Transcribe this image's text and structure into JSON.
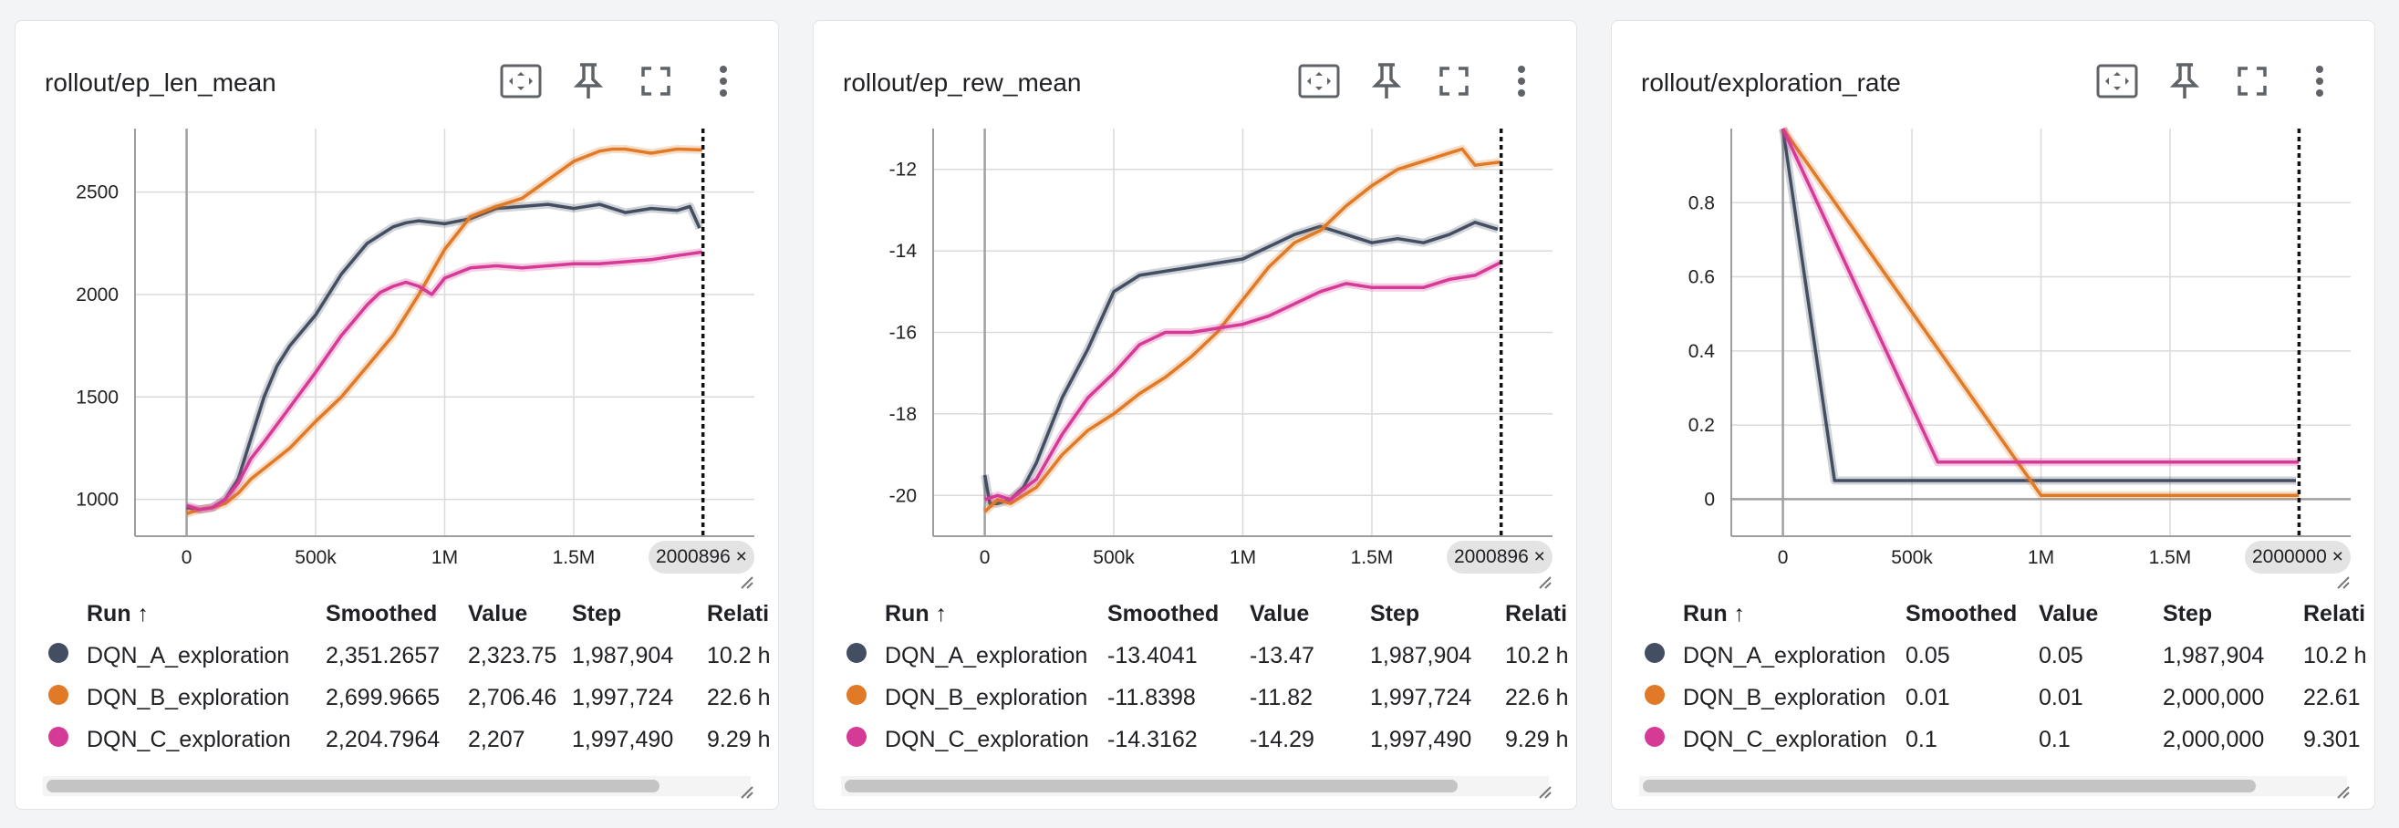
{
  "icons": [
    "fit-domain-icon",
    "pin-icon",
    "fullscreen-icon",
    "more-vert-icon"
  ],
  "columns": [
    "Run ↑",
    "Smoothed",
    "Value",
    "Step",
    "Relati"
  ],
  "runs": [
    {
      "name": "DQN_A_exploration",
      "color": "#444e63"
    },
    {
      "name": "DQN_B_exploration",
      "color": "#e07a26"
    },
    {
      "name": "DQN_C_exploration",
      "color": "#d63a97"
    }
  ],
  "cards": [
    {
      "title": "rollout/ep_len_mean",
      "step_label": "2000896 ×",
      "rows": [
        [
          "2,351.2657",
          "2,323.75",
          "1,987,904",
          "10.2 h"
        ],
        [
          "2,699.9665",
          "2,706.46",
          "1,997,724",
          "22.6 h"
        ],
        [
          "2,204.7964",
          "2,207",
          "1,997,490",
          "9.29 h"
        ]
      ]
    },
    {
      "title": "rollout/ep_rew_mean",
      "step_label": "2000896 ×",
      "rows": [
        [
          "-13.4041",
          "-13.47",
          "1,987,904",
          "10.2 h"
        ],
        [
          "-11.8398",
          "-11.82",
          "1,997,724",
          "22.6 h"
        ],
        [
          "-14.3162",
          "-14.29",
          "1,997,490",
          "9.29 h"
        ]
      ]
    },
    {
      "title": "rollout/exploration_rate",
      "step_label": "2000000 ×",
      "rows": [
        [
          "0.05",
          "0.05",
          "1,987,904",
          "10.2 h"
        ],
        [
          "0.01",
          "0.01",
          "2,000,000",
          "22.61"
        ],
        [
          "0.1",
          "0.1",
          "2,000,000",
          "9.301"
        ]
      ]
    }
  ],
  "chart_data": [
    {
      "type": "line",
      "title": "rollout/ep_len_mean",
      "xlim": [
        -200000,
        2200000
      ],
      "ylim": [
        820,
        2810
      ],
      "x_ticks": [
        0,
        500000,
        1000000,
        1500000
      ],
      "x_tick_labels": [
        "0",
        "500k",
        "1M",
        "1.5M"
      ],
      "y_ticks": [
        1000,
        1500,
        2000,
        2500
      ],
      "y_tick_labels": [
        "1000",
        "1500",
        "2000",
        "2500"
      ],
      "marker_x": 2000896,
      "series": [
        {
          "name": "DQN_A_exploration",
          "x": [
            0,
            50000,
            100000,
            150000,
            200000,
            250000,
            300000,
            350000,
            400000,
            500000,
            600000,
            700000,
            800000,
            850000,
            900000,
            1000000,
            1100000,
            1200000,
            1300000,
            1400000,
            1500000,
            1600000,
            1700000,
            1800000,
            1900000,
            1950000,
            1987904
          ],
          "y": [
            960,
            950,
            960,
            1000,
            1100,
            1300,
            1500,
            1650,
            1750,
            1900,
            2100,
            2250,
            2330,
            2350,
            2360,
            2345,
            2370,
            2420,
            2430,
            2440,
            2420,
            2440,
            2400,
            2420,
            2410,
            2430,
            2324
          ]
        },
        {
          "name": "DQN_B_exploration",
          "x": [
            0,
            50000,
            100000,
            150000,
            200000,
            250000,
            300000,
            400000,
            500000,
            600000,
            700000,
            800000,
            900000,
            1000000,
            1100000,
            1200000,
            1300000,
            1400000,
            1500000,
            1600000,
            1650000,
            1700000,
            1800000,
            1900000,
            1997724
          ],
          "y": [
            930,
            950,
            960,
            980,
            1030,
            1100,
            1150,
            1250,
            1380,
            1500,
            1650,
            1800,
            2000,
            2220,
            2380,
            2430,
            2470,
            2560,
            2650,
            2700,
            2710,
            2710,
            2690,
            2710,
            2706
          ]
        },
        {
          "name": "DQN_C_exploration",
          "x": [
            0,
            50000,
            100000,
            150000,
            200000,
            250000,
            300000,
            400000,
            500000,
            600000,
            700000,
            750000,
            800000,
            850000,
            900000,
            950000,
            1000000,
            1100000,
            1200000,
            1300000,
            1400000,
            1500000,
            1600000,
            1700000,
            1800000,
            1900000,
            1997490
          ],
          "y": [
            970,
            950,
            960,
            1000,
            1080,
            1200,
            1280,
            1450,
            1620,
            1800,
            1950,
            2010,
            2040,
            2060,
            2040,
            2000,
            2080,
            2130,
            2140,
            2130,
            2140,
            2150,
            2150,
            2160,
            2170,
            2190,
            2207
          ]
        }
      ]
    },
    {
      "type": "line",
      "title": "rollout/ep_rew_mean",
      "xlim": [
        -200000,
        2200000
      ],
      "ylim": [
        -21,
        -11
      ],
      "x_ticks": [
        0,
        500000,
        1000000,
        1500000
      ],
      "x_tick_labels": [
        "0",
        "500k",
        "1M",
        "1.5M"
      ],
      "y_ticks": [
        -20,
        -18,
        -16,
        -14,
        -12
      ],
      "y_tick_labels": [
        "-20",
        "-18",
        "-16",
        "-14",
        "-12"
      ],
      "marker_x": 2000896,
      "series": [
        {
          "name": "DQN_A_exploration",
          "x": [
            0,
            20000,
            50000,
            100000,
            150000,
            200000,
            300000,
            400000,
            500000,
            550000,
            600000,
            700000,
            800000,
            900000,
            1000000,
            1100000,
            1200000,
            1300000,
            1400000,
            1500000,
            1600000,
            1700000,
            1800000,
            1900000,
            1987904
          ],
          "y": [
            -19.5,
            -20.2,
            -20.2,
            -20.1,
            -19.8,
            -19.2,
            -17.6,
            -16.4,
            -15.0,
            -14.8,
            -14.6,
            -14.5,
            -14.4,
            -14.3,
            -14.2,
            -13.9,
            -13.6,
            -13.4,
            -13.6,
            -13.8,
            -13.7,
            -13.8,
            -13.6,
            -13.3,
            -13.47
          ]
        },
        {
          "name": "DQN_B_exploration",
          "x": [
            0,
            50000,
            100000,
            200000,
            300000,
            400000,
            500000,
            600000,
            700000,
            800000,
            900000,
            1000000,
            1100000,
            1200000,
            1300000,
            1400000,
            1500000,
            1600000,
            1700000,
            1800000,
            1850000,
            1900000,
            1997724
          ],
          "y": [
            -20.4,
            -20.1,
            -20.2,
            -19.8,
            -19.0,
            -18.4,
            -18.0,
            -17.5,
            -17.1,
            -16.6,
            -16.0,
            -15.2,
            -14.4,
            -13.8,
            -13.5,
            -12.9,
            -12.4,
            -12.0,
            -11.8,
            -11.6,
            -11.5,
            -11.9,
            -11.82
          ]
        },
        {
          "name": "DQN_C_exploration",
          "x": [
            0,
            50000,
            100000,
            200000,
            300000,
            400000,
            500000,
            600000,
            700000,
            800000,
            900000,
            1000000,
            1100000,
            1200000,
            1300000,
            1400000,
            1500000,
            1600000,
            1700000,
            1800000,
            1900000,
            1997490
          ],
          "y": [
            -20.1,
            -20.0,
            -20.1,
            -19.6,
            -18.5,
            -17.6,
            -17.0,
            -16.3,
            -16.0,
            -16.0,
            -15.9,
            -15.8,
            -15.6,
            -15.3,
            -15.0,
            -14.8,
            -14.9,
            -14.9,
            -14.9,
            -14.7,
            -14.6,
            -14.29
          ]
        }
      ]
    },
    {
      "type": "line",
      "title": "rollout/exploration_rate",
      "xlim": [
        -200000,
        2200000
      ],
      "ylim": [
        -0.1,
        1.0
      ],
      "x_ticks": [
        0,
        500000,
        1000000,
        1500000
      ],
      "x_tick_labels": [
        "0",
        "500k",
        "1M",
        "1.5M"
      ],
      "y_ticks": [
        0,
        0.2,
        0.4,
        0.6,
        0.8
      ],
      "y_tick_labels": [
        "0",
        "0.2",
        "0.4",
        "0.6",
        "0.8"
      ],
      "marker_x": 2000000,
      "series": [
        {
          "name": "DQN_A_exploration",
          "x": [
            0,
            200000,
            1987904
          ],
          "y": [
            1.0,
            0.05,
            0.05
          ]
        },
        {
          "name": "DQN_B_exploration",
          "x": [
            0,
            1000000,
            2000000
          ],
          "y": [
            1.0,
            0.01,
            0.01
          ]
        },
        {
          "name": "DQN_C_exploration",
          "x": [
            0,
            600000,
            2000000
          ],
          "y": [
            1.0,
            0.1,
            0.1
          ]
        }
      ]
    }
  ]
}
